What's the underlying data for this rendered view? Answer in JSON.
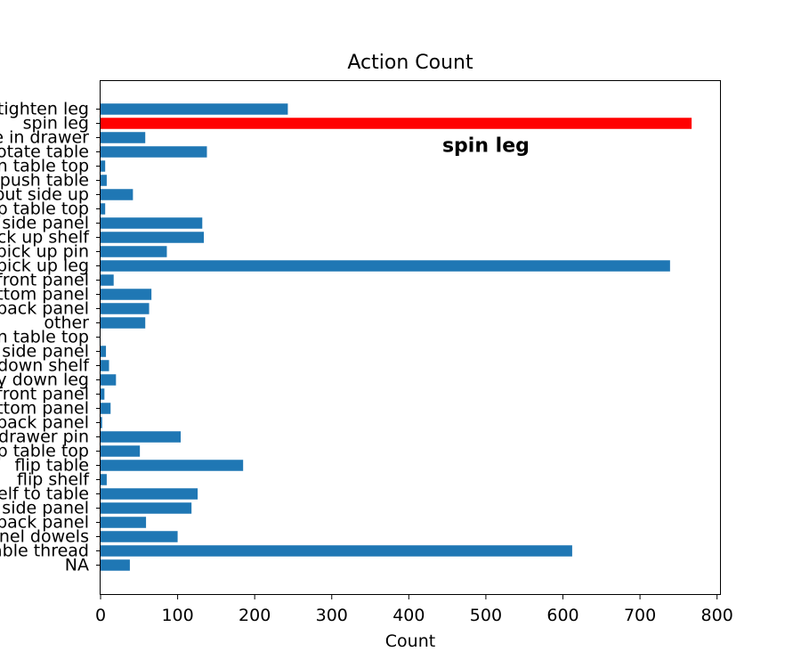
{
  "chart_data": {
    "type": "bar",
    "orientation": "horizontal",
    "title": "Action Count",
    "xlabel": "Count",
    "ylabel": "",
    "xlim": [
      0,
      805
    ],
    "xticks": [
      0,
      100,
      200,
      300,
      400,
      500,
      600,
      700,
      800
    ],
    "grid": false,
    "colors": {
      "bar": "#1f77b4",
      "highlight": "#ff0000",
      "axis": "#000000"
    },
    "annotation": {
      "text": "spin leg",
      "x": 500,
      "category": "rotate table"
    },
    "categories": [
      "tighten leg",
      "spin leg",
      "slide in drawer",
      "rotate table",
      "position table top",
      "push table",
      "put side up",
      "pick up table top",
      "pick up side panel",
      "pick up shelf",
      "pick up pin",
      "pick up leg",
      "pick up front panel",
      "pick up bottom panel",
      "pick up back panel",
      "other",
      "lay down table top",
      "lay down side panel",
      "lay down shelf",
      "lay down leg",
      "lay down front panel",
      "lay down bottom panel",
      "lay down back panel",
      "insert drawer pin",
      "flip table top",
      "flip table",
      "flip shelf",
      "attach shelf to table",
      "align side panel",
      "align back panel",
      "align panel dowels",
      "align leg screw with table thread",
      "NA"
    ],
    "values": [
      243,
      767,
      58,
      138,
      6,
      8,
      42,
      6,
      132,
      134,
      86,
      739,
      17,
      66,
      63,
      58,
      0,
      7,
      11,
      20,
      5,
      13,
      2,
      104,
      51,
      185,
      8,
      126,
      118,
      59,
      100,
      612,
      38
    ],
    "highlight_index": 1
  }
}
